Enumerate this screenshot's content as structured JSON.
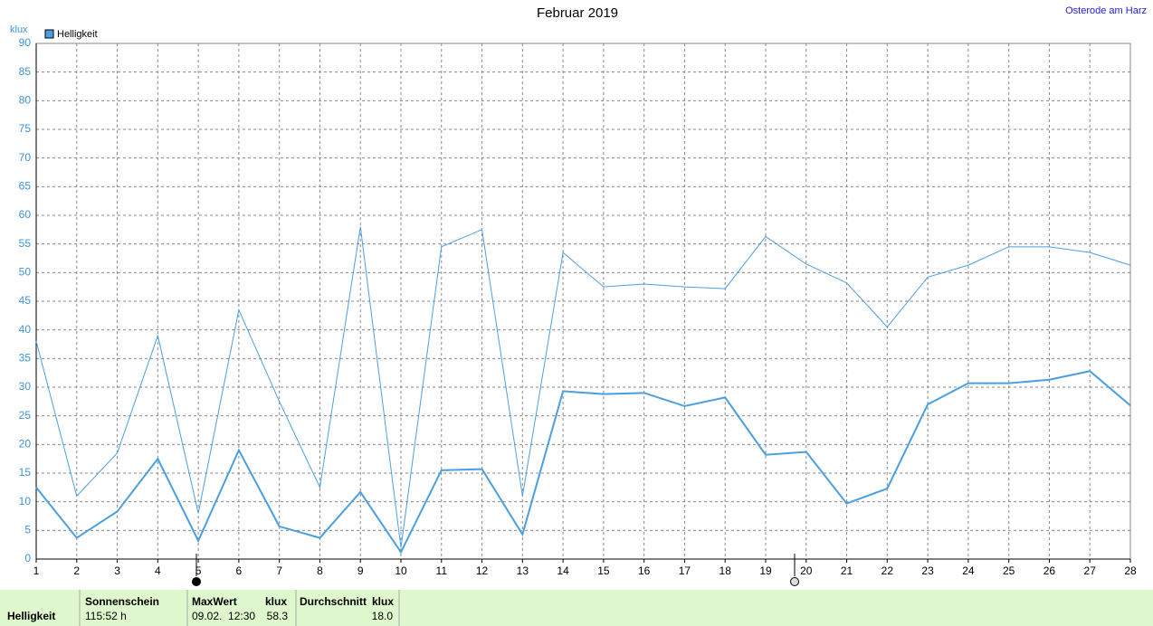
{
  "chart_data": {
    "type": "line",
    "title": "Februar 2019",
    "location": "Osterode am Harz",
    "y_unit": "klux",
    "x": [
      1,
      2,
      3,
      4,
      5,
      6,
      7,
      8,
      9,
      10,
      11,
      12,
      13,
      14,
      15,
      16,
      17,
      18,
      19,
      20,
      21,
      22,
      23,
      24,
      25,
      26,
      27,
      28
    ],
    "series": [
      {
        "name": "Helligkeit",
        "color": "#4a9fe0",
        "width": 2,
        "values": [
          12.5,
          3.7,
          8.3,
          17.5,
          3.2,
          19,
          5.7,
          3.7,
          11.7,
          1.2,
          15.5,
          15.7,
          4.3,
          29.3,
          28.8,
          29,
          26.7,
          28.2,
          18.2,
          18.7,
          9.7,
          12.3,
          27,
          30.7,
          30.7,
          31.3,
          32.8,
          26.8
        ]
      },
      {
        "color": "#4a9fe0",
        "width": 1,
        "values": [
          38,
          11,
          18.5,
          39,
          8,
          43.5,
          27.5,
          12.5,
          58,
          2,
          54.5,
          57.5,
          11,
          53.5,
          47.5,
          48,
          47.5,
          47.2,
          56.3,
          51.5,
          48.2,
          40.5,
          49.2,
          51.3,
          54.5,
          54.5,
          53.5,
          51.3
        ]
      }
    ],
    "xlim": [
      1,
      28
    ],
    "xticks": [
      1,
      2,
      3,
      4,
      5,
      6,
      7,
      8,
      9,
      10,
      11,
      12,
      13,
      14,
      15,
      16,
      17,
      18,
      19,
      20,
      21,
      22,
      23,
      24,
      25,
      26,
      27,
      28
    ],
    "ylim": [
      0,
      90
    ],
    "yticks": [
      0,
      5,
      10,
      15,
      20,
      25,
      30,
      35,
      40,
      45,
      50,
      55,
      60,
      65,
      70,
      75,
      80,
      85,
      90
    ],
    "grid": true
  },
  "summary": {
    "row_label": "Helligkeit",
    "sunshine": {
      "label": "Sonnenschein",
      "value": "115:52 h"
    },
    "max": {
      "label": "MaxWert",
      "unit": "klux",
      "time": "09.02.  12:30",
      "value": "58.3"
    },
    "average": {
      "label": "Durchschnitt",
      "unit": "klux",
      "value": "18.0"
    }
  }
}
